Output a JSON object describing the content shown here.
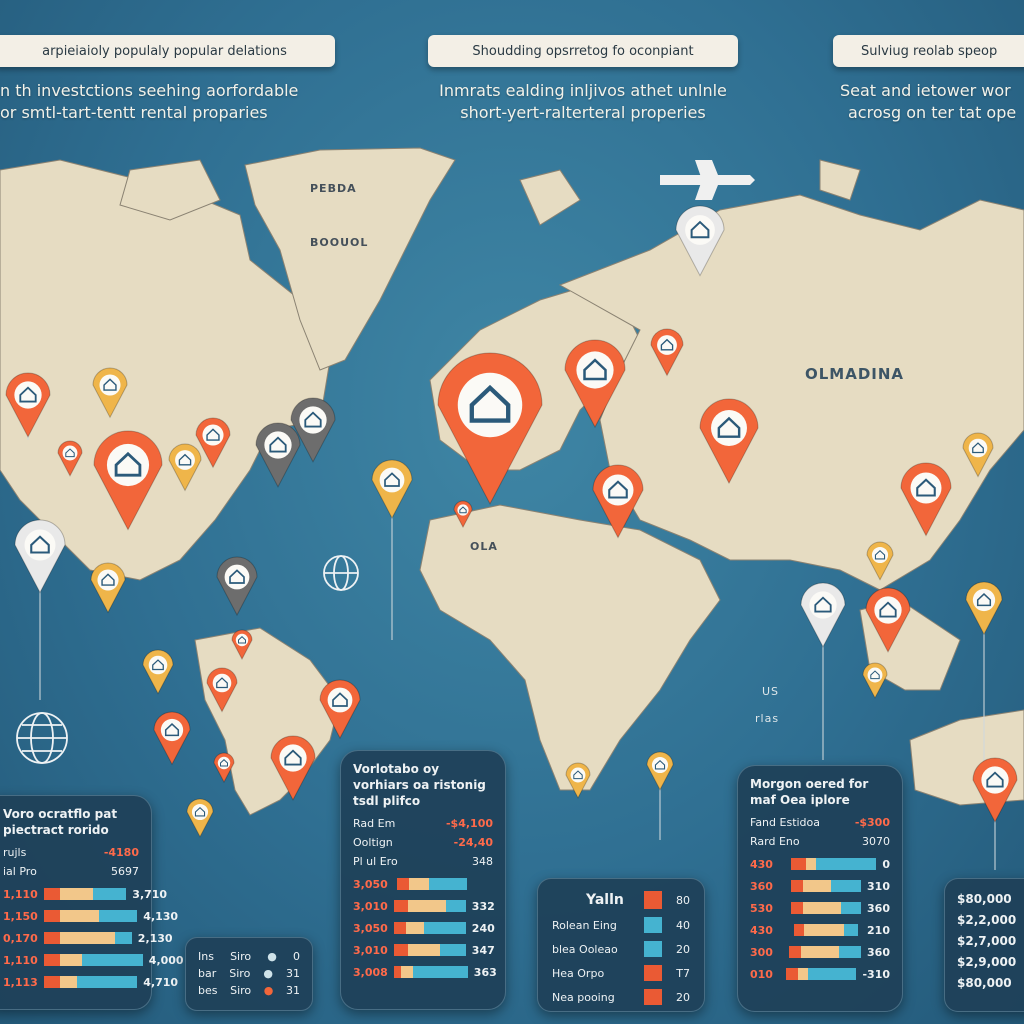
{
  "header": [
    {
      "title": "arpieiaioly populaly popular delations",
      "subtitle": [
        "n th investctions seehing aorfordable",
        "or smtl-tart-tentt rental proparies"
      ]
    },
    {
      "title": "Shoudding opsrretog fo oconpiant",
      "subtitle": [
        "Inmrats ealding inljivos athet unlnle",
        "short-yert-ralterteral properies"
      ]
    },
    {
      "title": "Sulviug reolab speop",
      "subtitle": [
        "Seat and ietower wor",
        "acrosg on ter tat ope"
      ]
    }
  ],
  "map_labels": {
    "greenland_1": "PEBDA",
    "greenland_2": "BOOUOL",
    "asia": "OLMADINA",
    "africa": "OLA",
    "ocean": "US",
    "ocean2": "rlas"
  },
  "colors": {
    "background": "#2f6f92",
    "land": "#e6dcc2",
    "pin_orange": "#f2663a",
    "pin_yellow": "#efb54a",
    "pin_grey": "#6d6d6d",
    "pin_white": "#e9e9e9",
    "panel": "#1e4058",
    "bar_red": "#ea5a34",
    "bar_sand": "#f2c78a",
    "bar_blue": "#45b3d0"
  },
  "panels": {
    "p1": {
      "title": [
        "Voro ocratflo pat",
        "piectract rorido"
      ],
      "kv": [
        [
          "rujls",
          "-4180"
        ],
        [
          "ial Pro",
          "5697"
        ]
      ],
      "bars": [
        {
          "label": "1,110",
          "value": "3,710",
          "segments": [
            0.15,
            0.3,
            0.3
          ]
        },
        {
          "label": "1,150",
          "value": "4,130",
          "segments": [
            0.15,
            0.35,
            0.35
          ]
        },
        {
          "label": "0,170",
          "value": "2,130",
          "segments": [
            0.15,
            0.5,
            0.15
          ]
        },
        {
          "label": "1,110",
          "value": "4,000",
          "segments": [
            0.15,
            0.2,
            0.55
          ]
        },
        {
          "label": "1,113",
          "value": "4,710",
          "segments": [
            0.15,
            0.15,
            0.55
          ]
        }
      ]
    },
    "p2": {
      "rows": [
        [
          "Ins",
          "Siro",
          "0"
        ],
        [
          "bar",
          "Siro",
          "31"
        ],
        [
          "bes",
          "Siro",
          "31"
        ]
      ]
    },
    "p3": {
      "title": [
        "Vorlotabo oy",
        "vorhiars oa ristonig",
        "tsdl plifco"
      ],
      "kv": [
        [
          "Rad Em",
          "-$4,100"
        ],
        [
          "Ooltign",
          "-24,40"
        ],
        [
          "Pl ul Ero",
          "348"
        ]
      ],
      "bars": [
        {
          "label": "3,050",
          "value": "",
          "segments": [
            0.12,
            0.2,
            0.38
          ]
        },
        {
          "label": "3,010",
          "value": "332",
          "segments": [
            0.14,
            0.38,
            0.2
          ]
        },
        {
          "label": "3,050",
          "value": "240",
          "segments": [
            0.12,
            0.18,
            0.42
          ]
        },
        {
          "label": "3,010",
          "value": "347",
          "segments": [
            0.14,
            0.32,
            0.26
          ]
        },
        {
          "label": "3,008",
          "value": "363",
          "segments": [
            0.07,
            0.12,
            0.55
          ]
        }
      ]
    },
    "p4": {
      "title": "Yalln",
      "rows": [
        [
          "Rolean Eing",
          "40"
        ],
        [
          "blea Ooleao",
          "20"
        ],
        [
          "Hea Orpo",
          "T7"
        ],
        [
          "Nea pooing",
          "20"
        ]
      ],
      "first_value": "80"
    },
    "p5": {
      "title": [
        "Morgon oered for",
        "maf Oea iplore"
      ],
      "kv": [
        [
          "Fand Estidoa",
          "-$300"
        ],
        [
          "Rard Eno",
          "3070"
        ]
      ],
      "bars": [
        {
          "label": "430",
          "value": "0",
          "segments": [
            0.15,
            0.1,
            0.6
          ]
        },
        {
          "label": "360",
          "value": "310",
          "segments": [
            0.12,
            0.28,
            0.3
          ]
        },
        {
          "label": "530",
          "value": "360",
          "segments": [
            0.12,
            0.38,
            0.2
          ]
        },
        {
          "label": "430",
          "value": "210",
          "segments": [
            0.1,
            0.4,
            0.14
          ]
        },
        {
          "label": "300",
          "value": "360",
          "segments": [
            0.12,
            0.38,
            0.22
          ]
        },
        {
          "label": "010",
          "value": "-310",
          "segments": [
            0.12,
            0.1,
            0.48
          ]
        }
      ]
    },
    "p6": {
      "values": [
        "$80,000",
        "$2,2,000",
        "$2,7,000",
        "$2,9,000",
        "$80,000"
      ]
    }
  }
}
